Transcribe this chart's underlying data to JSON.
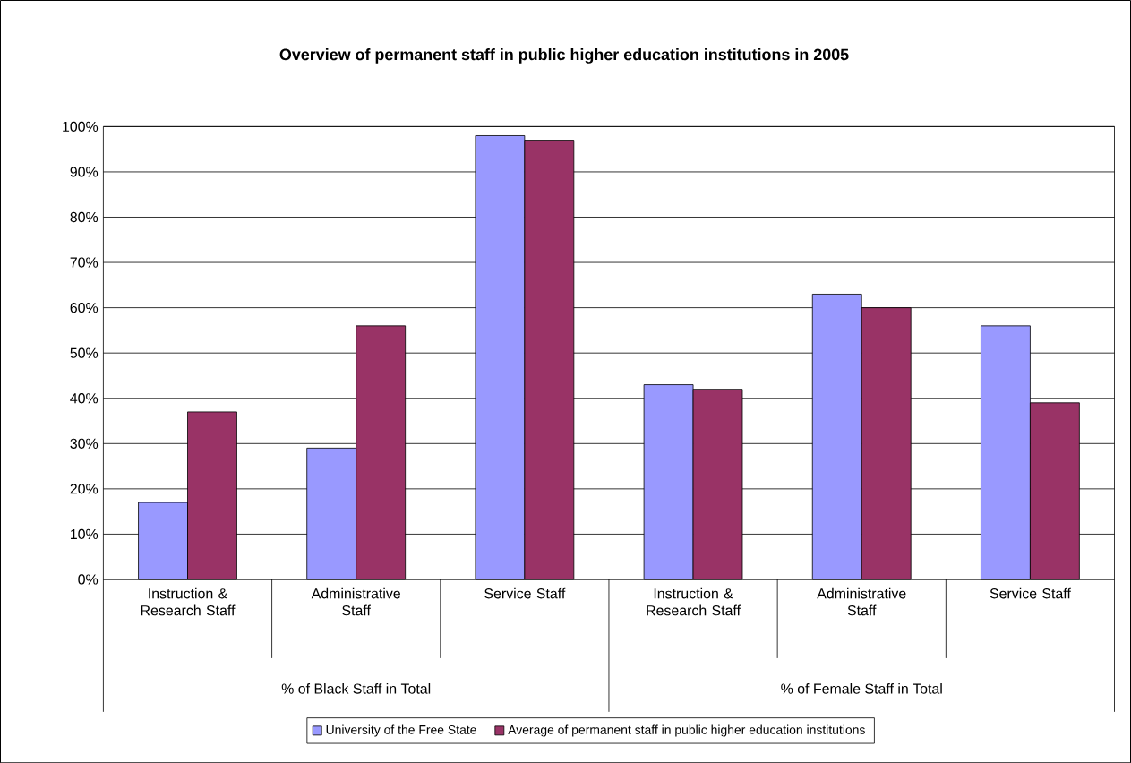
{
  "chart_data": {
    "type": "bar",
    "title": "Overview of permanent staff in public higher education institutions in 2005",
    "categories": [
      "Instruction & Research Staff",
      "Administrative Staff",
      "Service Staff",
      "Instruction & Research Staff",
      "Administrative Staff",
      "Service Staff"
    ],
    "series": [
      {
        "name": "University of the Free State",
        "color": "#9999ff",
        "values": [
          17,
          29,
          98,
          43,
          63,
          56
        ]
      },
      {
        "name": "Average of permanent staff in public higher education institutions",
        "color": "#993366",
        "values": [
          37,
          56,
          97,
          42,
          60,
          39
        ]
      }
    ],
    "annotations": [
      "% of Black Staff in Total",
      "% of Female Staff in Total"
    ],
    "ylim": [
      0,
      100
    ],
    "yticks": [
      {
        "value": 0,
        "label": "0%"
      },
      {
        "value": 10,
        "label": "10%"
      },
      {
        "value": 20,
        "label": "20%"
      },
      {
        "value": 30,
        "label": "30%"
      },
      {
        "value": 40,
        "label": "40%"
      },
      {
        "value": 50,
        "label": "50%"
      },
      {
        "value": 60,
        "label": "60%"
      },
      {
        "value": 70,
        "label": "70%"
      },
      {
        "value": 80,
        "label": "80%"
      },
      {
        "value": 90,
        "label": "90%"
      },
      {
        "value": 100,
        "label": "100%"
      }
    ],
    "grid": "y",
    "legend": "bottom"
  }
}
